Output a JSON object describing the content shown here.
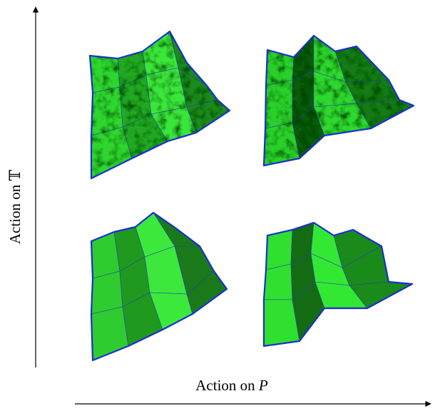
{
  "axes": {
    "y_label": "Action on 𝕋",
    "x_label": {
      "text": "Action on ",
      "variable": "P"
    }
  }
}
